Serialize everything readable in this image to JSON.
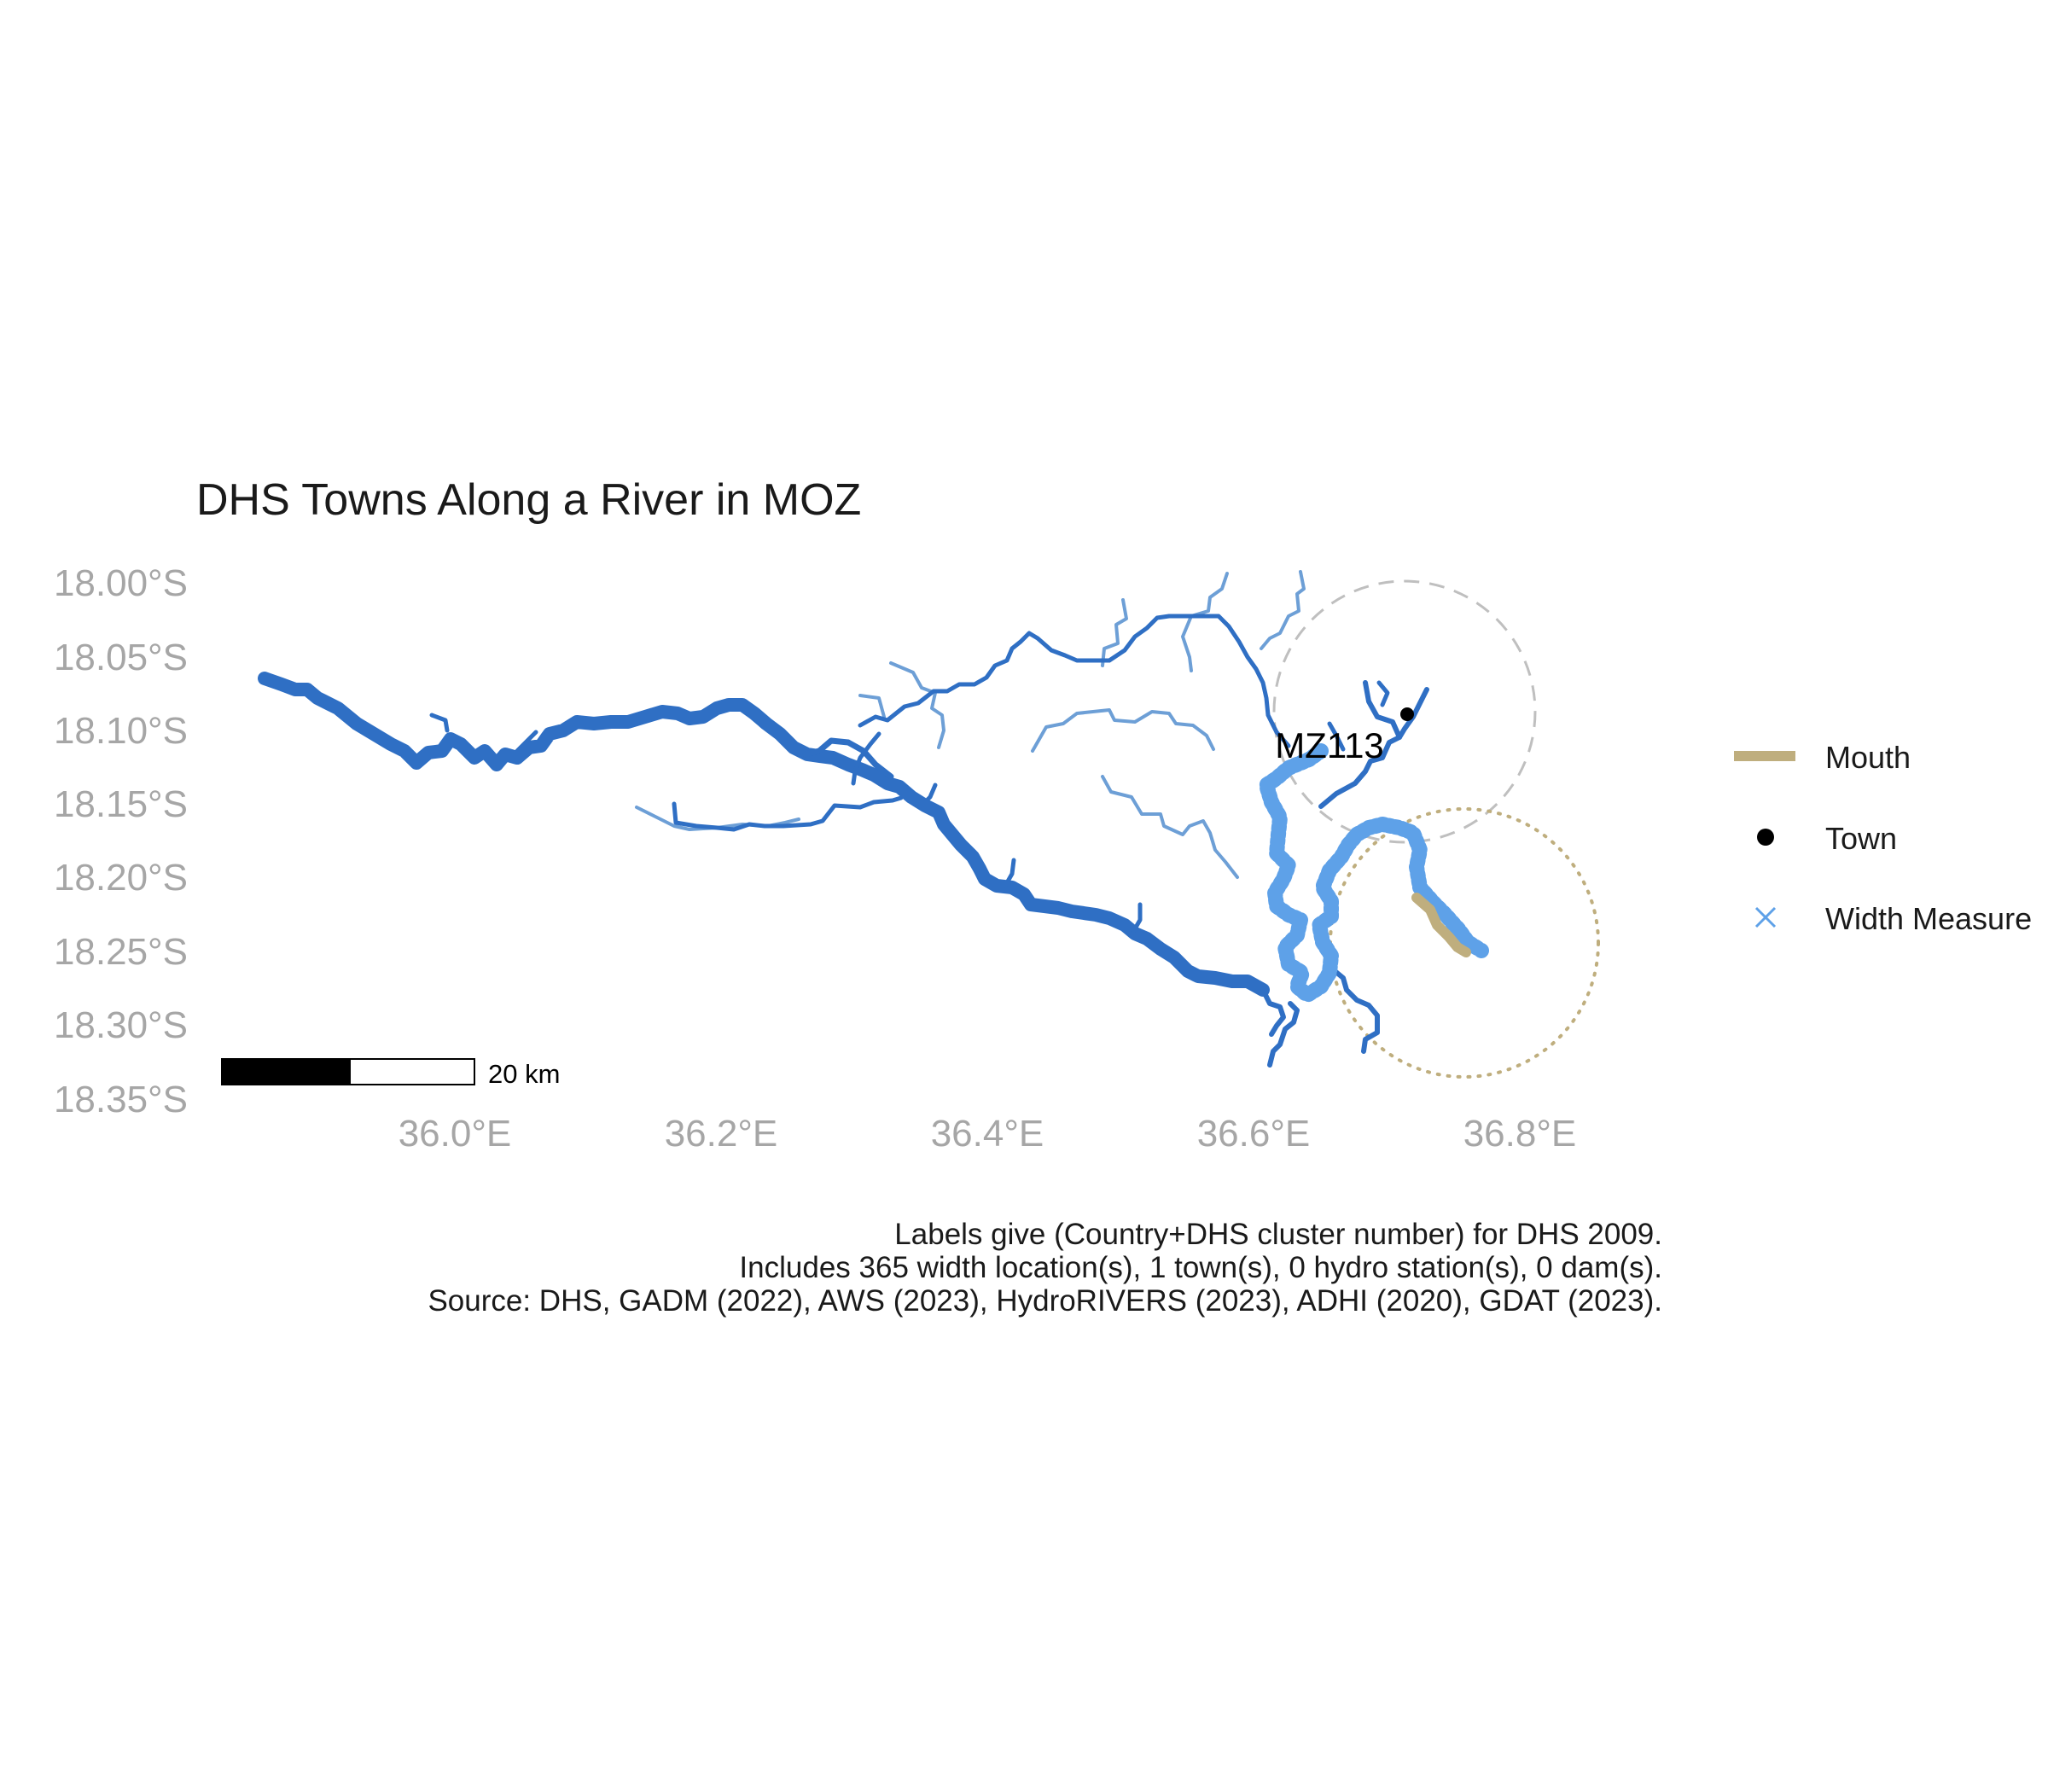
{
  "title": "DHS Towns Along a River in MOZ",
  "axes": {
    "y_ticks": [
      "18.00°S",
      "18.05°S",
      "18.10°S",
      "18.15°S",
      "18.20°S",
      "18.25°S",
      "18.30°S",
      "18.35°S"
    ],
    "x_ticks": [
      "36.0°E",
      "36.2°E",
      "36.4°E",
      "36.6°E",
      "36.8°E"
    ]
  },
  "town": {
    "label": "MZ113",
    "marker_color": "#000000"
  },
  "legend": {
    "items": [
      {
        "label": "Mouth",
        "symbol": "line",
        "color": "#bfae7e"
      },
      {
        "label": "Town",
        "symbol": "dot",
        "color": "#000000"
      },
      {
        "label": "Width Measure",
        "symbol": "cross",
        "color": "#5ea1e8"
      }
    ]
  },
  "scale_bar": {
    "label": "20 km"
  },
  "caption": [
    "Labels give (Country+DHS cluster number) for DHS 2009.",
    "Includes 365 width location(s), 1 town(s), 0 hydro station(s), 0 dam(s).",
    "Source: DHS, GADM (2022), AWS (2023), HydroRIVERS (2023), ADHI (2020), GDAT (2023)."
  ],
  "colors": {
    "main_river": "#2f6fc4",
    "tributary": "#6d9fd6",
    "width_measure": "#5ea1e8",
    "mouth": "#bfae7e",
    "town_buffer": "#bfbfbf",
    "mouth_buffer": "#bfae7e"
  }
}
